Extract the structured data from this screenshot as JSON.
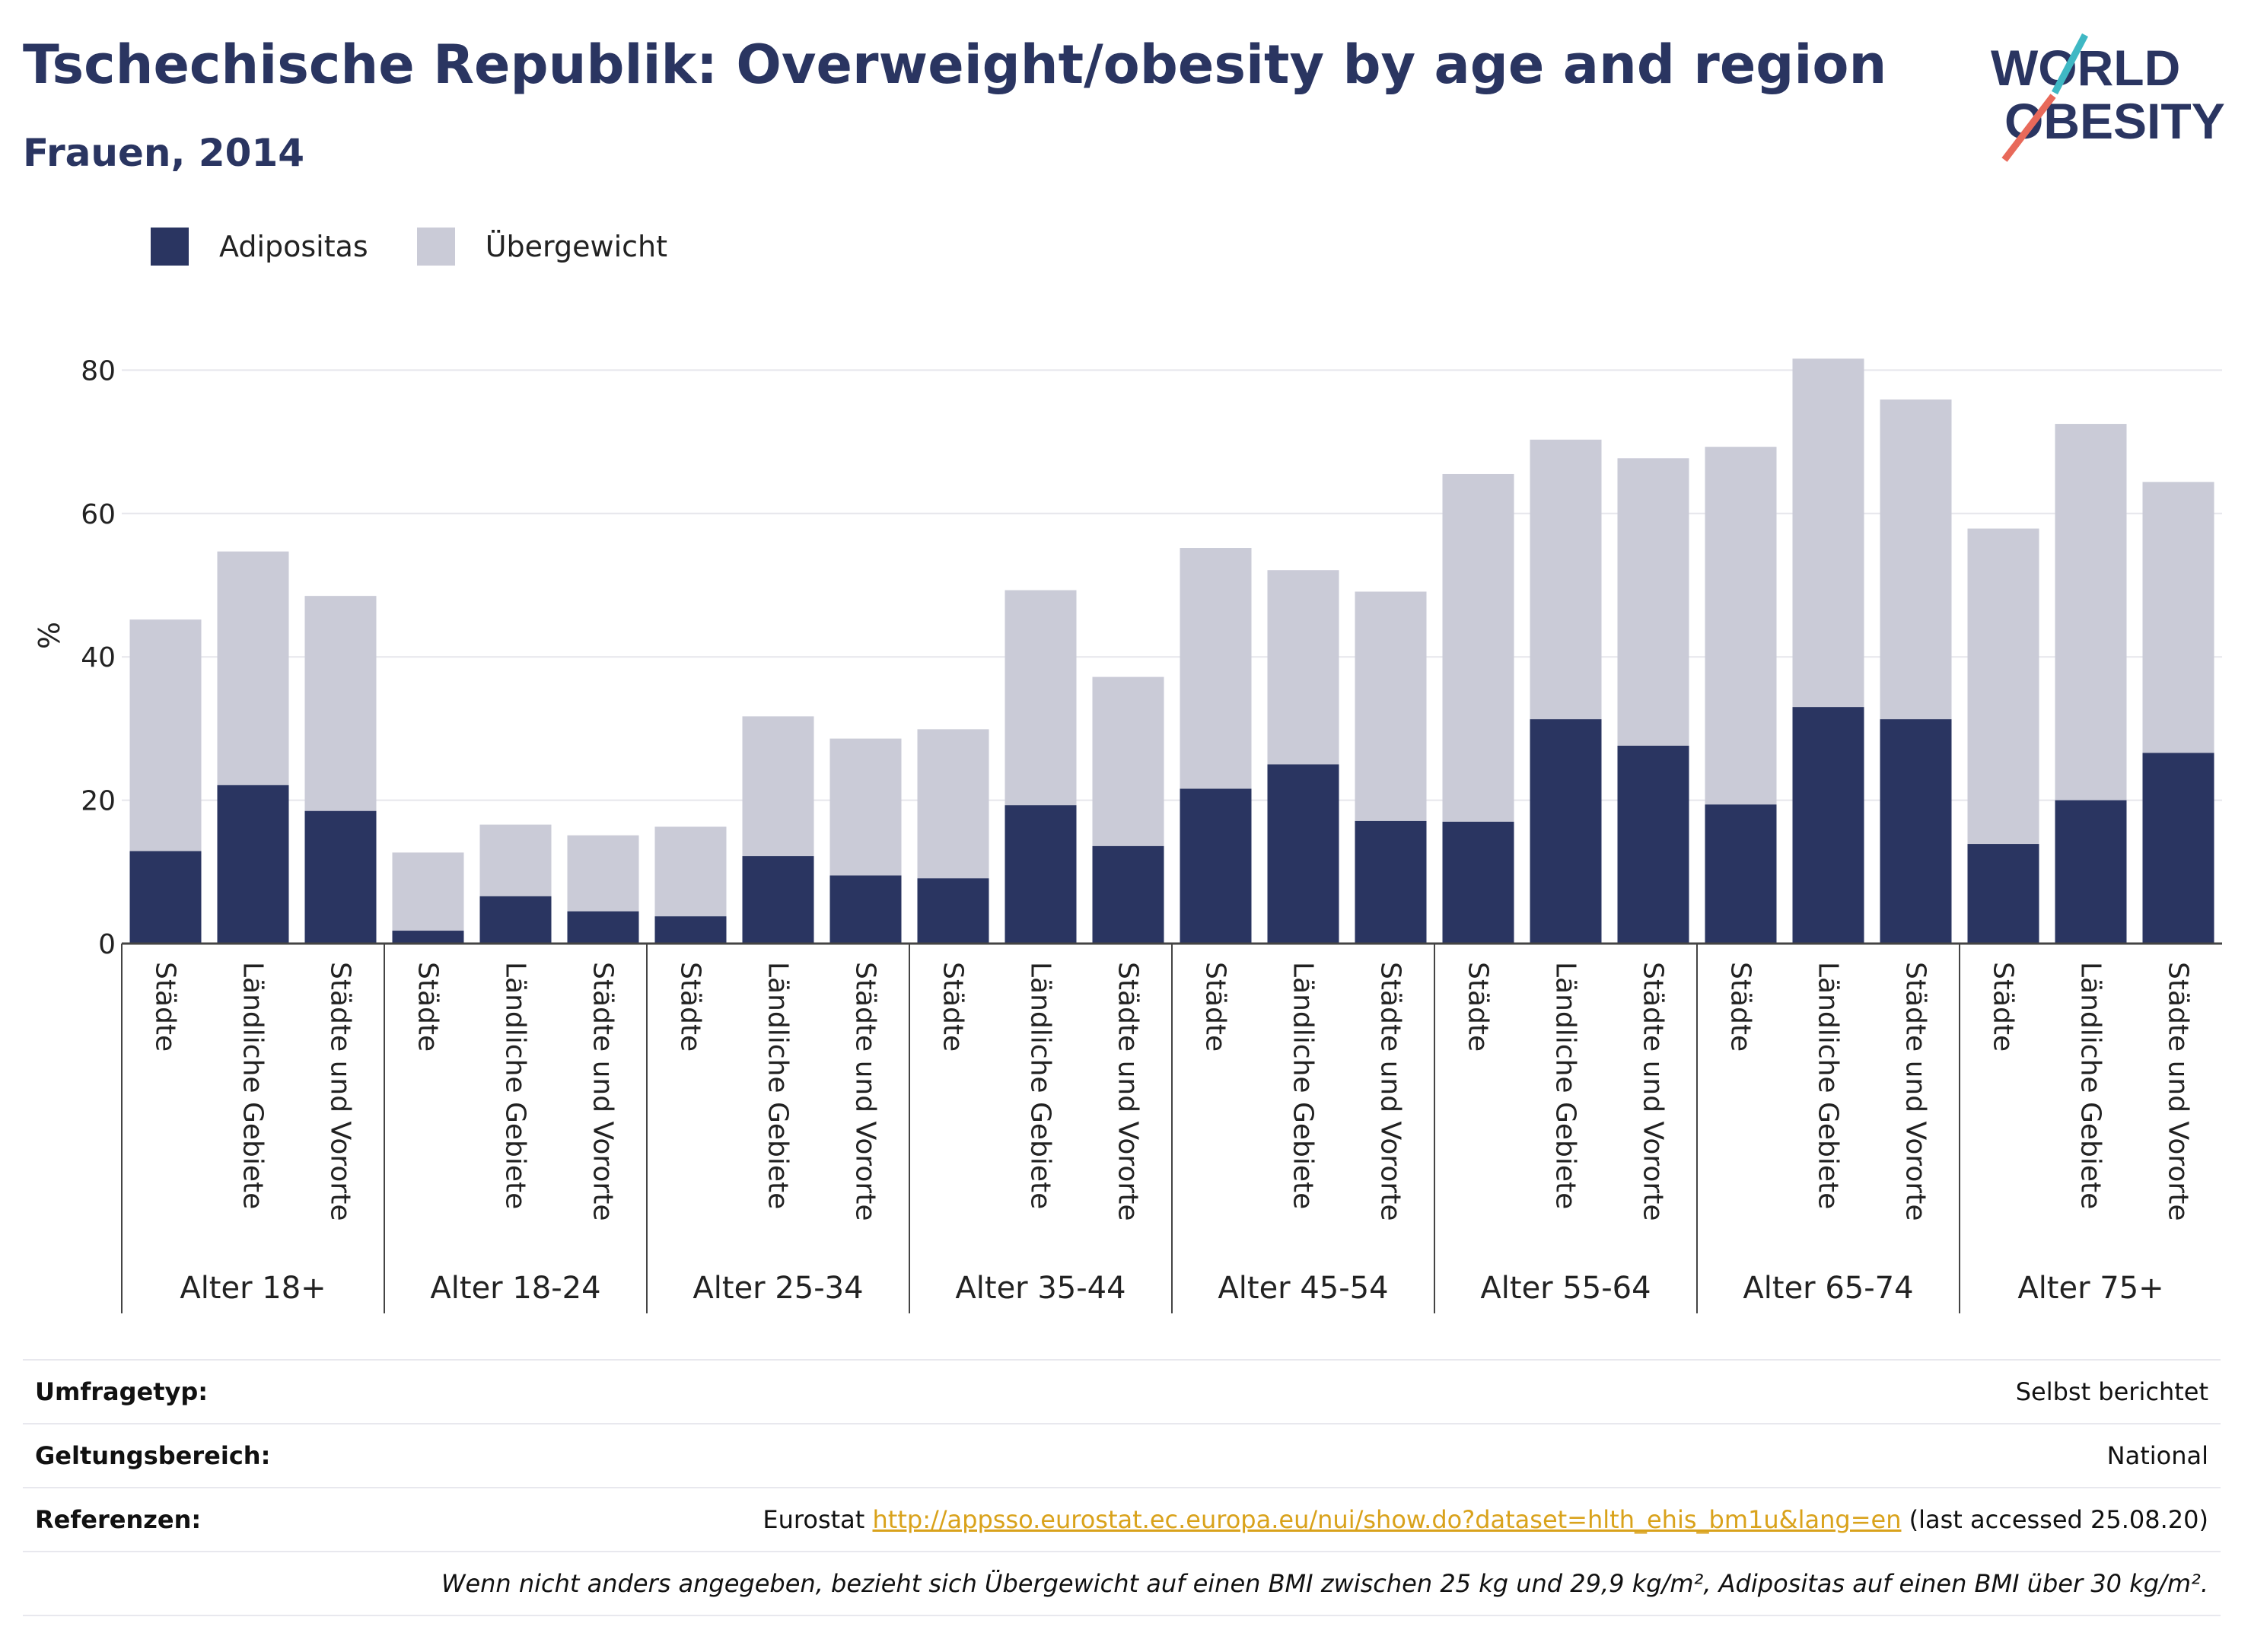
{
  "title": "Tschechische Republik: Overweight/obesity by age and region",
  "subtitle": "Frauen, 2014",
  "logo": {
    "line1": "WORLD",
    "line2": "OBESITY"
  },
  "colors": {
    "obesity": "#2a3561",
    "overweight": "#cacbd7",
    "accent_teal": "#3fb8c4",
    "accent_red": "#e8695a"
  },
  "chart_data": {
    "type": "bar",
    "stacked": true,
    "ylabel": "%",
    "ylim": [
      0,
      85
    ],
    "yticks": [
      0,
      20,
      40,
      60,
      80
    ],
    "grid": true,
    "legend_position": "top-left",
    "series": [
      {
        "name": "Adipositas",
        "color": "#2a3561",
        "values": [
          12.9,
          22.1,
          18.5,
          1.8,
          6.6,
          4.5,
          3.8,
          12.2,
          9.5,
          9.1,
          19.3,
          13.6,
          21.6,
          25.0,
          17.1,
          17.0,
          31.3,
          27.6,
          19.4,
          33.0,
          31.3,
          13.9,
          20.0,
          26.6
        ]
      },
      {
        "name": "Übergewicht",
        "color": "#cacbd7",
        "values": [
          32.3,
          32.6,
          30.0,
          10.9,
          10.0,
          10.6,
          12.5,
          19.5,
          19.1,
          20.8,
          30.0,
          23.6,
          33.6,
          27.1,
          32.0,
          48.5,
          39.0,
          40.1,
          49.9,
          48.6,
          44.6,
          44.0,
          52.5,
          37.8
        ]
      }
    ],
    "groups": [
      {
        "label": "Alter 18+",
        "categories": [
          "Städte",
          "Ländliche Gebiete",
          "Städte und Vororte"
        ]
      },
      {
        "label": "Alter 18-24",
        "categories": [
          "Städte",
          "Ländliche Gebiete",
          "Städte und Vororte"
        ]
      },
      {
        "label": "Alter 25-34",
        "categories": [
          "Städte",
          "Ländliche Gebiete",
          "Städte und Vororte"
        ]
      },
      {
        "label": "Alter 35-44",
        "categories": [
          "Städte",
          "Ländliche Gebiete",
          "Städte und Vororte"
        ]
      },
      {
        "label": "Alter 45-54",
        "categories": [
          "Städte",
          "Ländliche Gebiete",
          "Städte und Vororte"
        ]
      },
      {
        "label": "Alter 55-64",
        "categories": [
          "Städte",
          "Ländliche Gebiete",
          "Städte und Vororte"
        ]
      },
      {
        "label": "Alter 65-74",
        "categories": [
          "Städte",
          "Ländliche Gebiete",
          "Städte und Vororte"
        ]
      },
      {
        "label": "Alter 75+",
        "categories": [
          "Städte",
          "Ländliche Gebiete",
          "Städte und Vororte"
        ]
      }
    ]
  },
  "info": {
    "survey_label": "Umfragetyp:",
    "survey_value": "Selbst berichtet",
    "scope_label": "Geltungsbereich:",
    "scope_value": "National",
    "ref_label": "Referenzen:",
    "ref_prefix": "Eurostat",
    "ref_link": "http://appsso.eurostat.ec.europa.eu/nui/show.do?dataset=hlth_ehis_bm1u&lang=en",
    "ref_suffix": "(last accessed 25.08.20)",
    "note": "Wenn nicht anders angegeben, bezieht sich Übergewicht auf einen BMI zwischen 25 kg und 29,9 kg/m², Adipositas auf einen BMI über 30 kg/m²."
  }
}
